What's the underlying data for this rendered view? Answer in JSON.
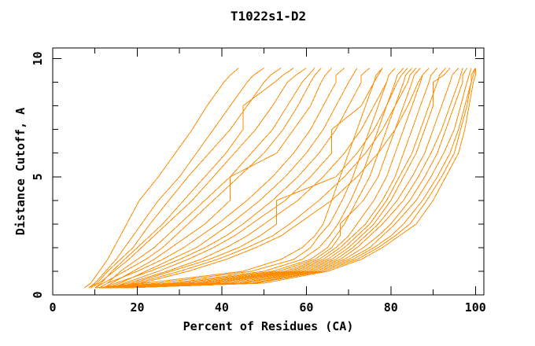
{
  "page": {
    "title": "T1022s1-D2"
  },
  "chart_data": {
    "type": "line",
    "title": "T1022s1-D2",
    "xlabel": "Percent of Residues (CA)",
    "ylabel": "Distance Cutoff, A",
    "legend": "none",
    "grid": false,
    "line_color": "#FF8C00",
    "axis_color": "#000000",
    "background": "#FFFFFF",
    "x_axis": {
      "min": 0,
      "max": 102,
      "major_ticks": [
        0,
        20,
        40,
        60,
        80,
        100
      ],
      "minor_ticks": [
        10,
        30,
        50,
        70,
        90
      ],
      "tick_labels": [
        "0",
        "20",
        "40",
        "60",
        "80",
        "100"
      ]
    },
    "y_axis": {
      "min": 0,
      "max": 10.45,
      "major_ticks": [
        0,
        5,
        10
      ],
      "minor_ticks": [
        1,
        2,
        3,
        4,
        6,
        7,
        8,
        9
      ],
      "tick_labels": [
        "0",
        "5",
        "10"
      ]
    },
    "cutoffs": [
      0.3,
      0.5,
      1,
      1.5,
      2,
      2.5,
      3,
      4,
      5,
      6,
      7,
      8,
      9,
      9.3,
      9.6
    ],
    "curves": [
      [
        7.5,
        9,
        11,
        13,
        14.5,
        16,
        17.5,
        20.5,
        25,
        29,
        33,
        36.5,
        40.5,
        42,
        44
      ],
      [
        8.5,
        10,
        12.5,
        15,
        17,
        19,
        21,
        25,
        30,
        34,
        38,
        42,
        46,
        47.5,
        50
      ],
      [
        8.5,
        10.5,
        13,
        16,
        19,
        21,
        23,
        27.5,
        32,
        37,
        42,
        46,
        50,
        51.5,
        54
      ],
      [
        10,
        11.5,
        14,
        17,
        20,
        23,
        26,
        31,
        36,
        41,
        45,
        45,
        52.5,
        54.5,
        57
      ],
      [
        9,
        11,
        14.5,
        18,
        21,
        24,
        27,
        33,
        38,
        43,
        48,
        52,
        55.5,
        57.5,
        60
      ],
      [
        11,
        13,
        16,
        20,
        24,
        27,
        30,
        36,
        42,
        47,
        52,
        55.5,
        59,
        60.5,
        62
      ],
      [
        10,
        12,
        17,
        22,
        26,
        29,
        32,
        38,
        44,
        50,
        54.5,
        58,
        61,
        62,
        63.5
      ],
      [
        12,
        14,
        19,
        24,
        28,
        32,
        36,
        42,
        42,
        53,
        57,
        61,
        63.5,
        64.5,
        66
      ],
      [
        11,
        13,
        20,
        26,
        31,
        35,
        39,
        46,
        52,
        57,
        61,
        64,
        67,
        67,
        69
      ],
      [
        13,
        16,
        22,
        28,
        34,
        38,
        42,
        49,
        55,
        60,
        64,
        67,
        70,
        71,
        72
      ],
      [
        12,
        15,
        23,
        30,
        36,
        41,
        45,
        52,
        58,
        63,
        67,
        70,
        73,
        73,
        75
      ],
      [
        14,
        17,
        25,
        32,
        38,
        43,
        47,
        55,
        61,
        66,
        66,
        73,
        76,
        77,
        78
      ],
      [
        13,
        18,
        27,
        35,
        41,
        46,
        50,
        58,
        64,
        69,
        73,
        76,
        79,
        79.5,
        81
      ],
      [
        15,
        19,
        28,
        37,
        44,
        49,
        53,
        53,
        67,
        72,
        76,
        79,
        81.5,
        82.5,
        84
      ],
      [
        14,
        20,
        30,
        39,
        46,
        52,
        56,
        63,
        69,
        74,
        78,
        81,
        84,
        84.5,
        86
      ],
      [
        16,
        21,
        32,
        41,
        48,
        54,
        58,
        66,
        72,
        77,
        81,
        84,
        86.5,
        87.5,
        89
      ],
      [
        10,
        22,
        45,
        54,
        59,
        62,
        64,
        66,
        68,
        70,
        72,
        74,
        76,
        76.5,
        78
      ],
      [
        11,
        25,
        47,
        57,
        61,
        63,
        65.5,
        68.5,
        71,
        73,
        75,
        77,
        79,
        79.5,
        81
      ],
      [
        12,
        28,
        50,
        59,
        63,
        65.5,
        67.5,
        70.5,
        73,
        75,
        77,
        79,
        81,
        81.5,
        83
      ],
      [
        13,
        30,
        52,
        61,
        65,
        67,
        69,
        72,
        75,
        77,
        79,
        81,
        83,
        83.5,
        85
      ],
      [
        11.5,
        32,
        53.5,
        62,
        66,
        68,
        68,
        73.5,
        77,
        79,
        81,
        83,
        85,
        85.5,
        87
      ],
      [
        14,
        34,
        55,
        63,
        67,
        70,
        72,
        76,
        79,
        81,
        83,
        85,
        87,
        87.5,
        89
      ],
      [
        12.5,
        35,
        56,
        64,
        68,
        71,
        74,
        78,
        81,
        83,
        85,
        87,
        89,
        89.5,
        91
      ],
      [
        15,
        37,
        57,
        65,
        69,
        72,
        75,
        79,
        82,
        85,
        87,
        89,
        91,
        91.5,
        93
      ],
      [
        13,
        38,
        58,
        66,
        70,
        73,
        76,
        80,
        83,
        86,
        88,
        90,
        90,
        92.5,
        94
      ],
      [
        16,
        40,
        59,
        67,
        71,
        74,
        77,
        81.5,
        85,
        88,
        90,
        92,
        94,
        94.5,
        96
      ],
      [
        14,
        42,
        60,
        68,
        72,
        75,
        78,
        83,
        86.5,
        89.5,
        92,
        94,
        96,
        96.5,
        97
      ],
      [
        17,
        44,
        61,
        69,
        73.5,
        77,
        80,
        84.5,
        88,
        91,
        93,
        95,
        97,
        97,
        98
      ],
      [
        15,
        45,
        62,
        70,
        75,
        78,
        81,
        86,
        89.5,
        92.5,
        95,
        96.5,
        98,
        98.5,
        99
      ],
      [
        17.5,
        47,
        63,
        71,
        76,
        80,
        83,
        87.5,
        91,
        94,
        96,
        97.5,
        99,
        99,
        100
      ],
      [
        16,
        48,
        64,
        72,
        77,
        81,
        84.5,
        88.5,
        92,
        95,
        96.5,
        98,
        99,
        99.5,
        100
      ],
      [
        18,
        50,
        65,
        73,
        78,
        82,
        86,
        90,
        93,
        96,
        97.5,
        98.5,
        99.5,
        100,
        100
      ]
    ]
  }
}
